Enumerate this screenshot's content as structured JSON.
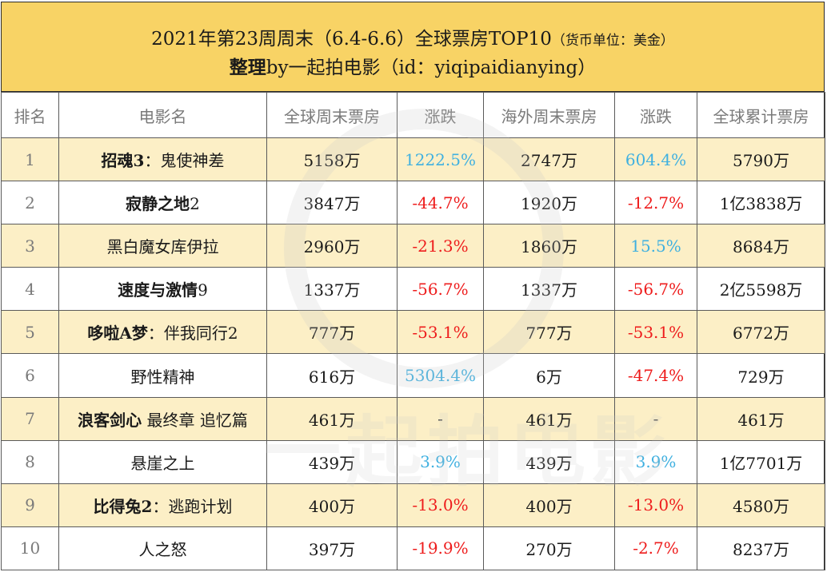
{
  "header": {
    "title_main": "2021年第23周周末（6.4-6.6）全球票房TOP10",
    "title_unit": "（货币单位：美金）",
    "subtitle_bold": "整理",
    "subtitle_rest": "by一起拍电影（id：yiqipaidianying）"
  },
  "table": {
    "columns": [
      "排名",
      "电影名",
      "全球周末票房",
      "涨跌",
      "海外周末票房",
      "涨跌",
      "全球累计票房"
    ],
    "rows": [
      {
        "rank": "1",
        "title_bold": "招魂3",
        "title_rest": "：鬼使神差",
        "global_weekend": "5158万",
        "global_change": "1222.5%",
        "overseas_weekend": "2747万",
        "overseas_change": "604.4%",
        "cumulative": "5790万"
      },
      {
        "rank": "2",
        "title_bold": "寂静之地",
        "title_rest": "2",
        "global_weekend": "3847万",
        "global_change": "-44.7%",
        "overseas_weekend": "1920万",
        "overseas_change": "-12.7%",
        "cumulative": "1亿3838万"
      },
      {
        "rank": "3",
        "title_bold": "",
        "title_rest": "黑白魔女库伊拉",
        "global_weekend": "2960万",
        "global_change": "-21.3%",
        "overseas_weekend": "1860万",
        "overseas_change": "15.5%",
        "cumulative": "8684万"
      },
      {
        "rank": "4",
        "title_bold": "速度与激情",
        "title_rest": "9",
        "global_weekend": "1337万",
        "global_change": "-56.7%",
        "overseas_weekend": "1337万",
        "overseas_change": "-56.7%",
        "cumulative": "2亿5598万"
      },
      {
        "rank": "5",
        "title_bold": "哆啦A梦",
        "title_rest": "：伴我同行2",
        "global_weekend": "777万",
        "global_change": "-53.1%",
        "overseas_weekend": "777万",
        "overseas_change": "-53.1%",
        "cumulative": "6772万"
      },
      {
        "rank": "6",
        "title_bold": "",
        "title_rest": "野性精神",
        "global_weekend": "616万",
        "global_change": "5304.4%",
        "overseas_weekend": "6万",
        "overseas_change": "-47.4%",
        "cumulative": "729万"
      },
      {
        "rank": "7",
        "title_bold": "浪客剑心",
        "title_rest": " 最终章 追忆篇",
        "global_weekend": "461万",
        "global_change": "-",
        "overseas_weekend": "461万",
        "overseas_change": "-",
        "cumulative": "461万"
      },
      {
        "rank": "8",
        "title_bold": "",
        "title_rest": "悬崖之上",
        "global_weekend": "439万",
        "global_change": "3.9%",
        "overseas_weekend": "439万",
        "overseas_change": "3.9%",
        "cumulative": "1亿7701万"
      },
      {
        "rank": "9",
        "title_bold": "比得兔2",
        "title_rest": "：逃跑计划",
        "global_weekend": "400万",
        "global_change": "-13.0%",
        "overseas_weekend": "400万",
        "overseas_change": "-13.0%",
        "cumulative": "4580万"
      },
      {
        "rank": "10",
        "title_bold": "",
        "title_rest": "人之怒",
        "global_weekend": "397万",
        "global_change": "-19.9%",
        "overseas_weekend": "270万",
        "overseas_change": "-2.7%",
        "cumulative": "8237万"
      }
    ]
  },
  "watermark": {
    "text": "一起拍电影"
  },
  "colors": {
    "header_bg": "#f8d365",
    "alt_row": "#fcecbc",
    "up": "#3fb0e0",
    "down": "#ee1c1c"
  }
}
